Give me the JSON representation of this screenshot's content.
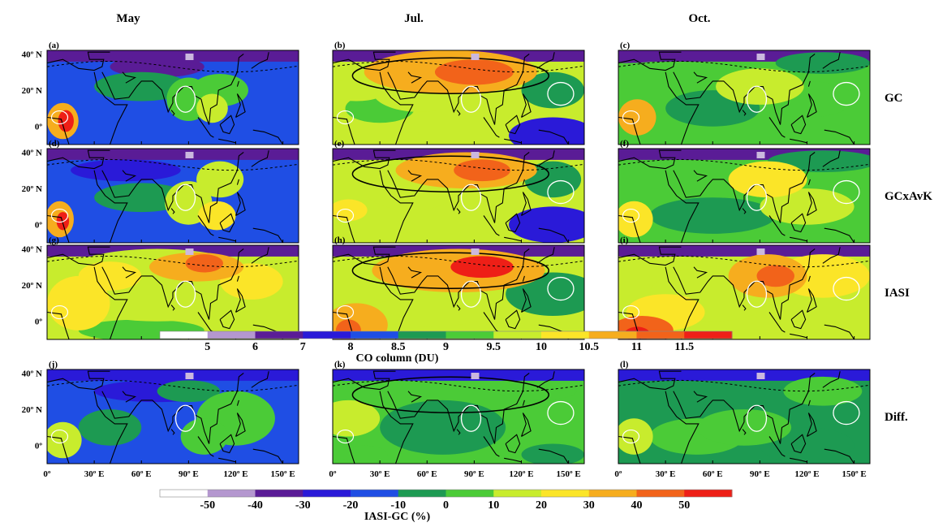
{
  "chart_data": {
    "type": "heatmap",
    "columns": [
      "May",
      "Jul.",
      "Oct."
    ],
    "rows": [
      "GC",
      "GCxAvK",
      "IASI",
      "Diff."
    ],
    "panel_labels": [
      [
        "(a)",
        "(b)",
        "(c)"
      ],
      [
        "(d)",
        "(e)",
        "(f)"
      ],
      [
        "(g)",
        "(h)",
        "(i)"
      ],
      [
        "(j)",
        "(k)",
        "(l)"
      ]
    ],
    "lat_ticks": [
      "40º N",
      "20º N",
      "0º"
    ],
    "lon_ticks": [
      "0º",
      "30º E",
      "60º E",
      "90º E",
      "120º E",
      "150º E"
    ],
    "lat_range": [
      -10,
      42
    ],
    "lon_range": [
      0,
      160
    ],
    "colorbar_co": {
      "title": "CO column (DU)",
      "ticks": [
        "5",
        "6",
        "7",
        "8",
        "8.5",
        "9",
        "9.5",
        "10",
        "10.5",
        "11",
        "11.5"
      ],
      "colors": [
        "#ffffff",
        "#b497cf",
        "#5a1c96",
        "#2a1ad8",
        "#1f4ee4",
        "#1d9a52",
        "#4bcb37",
        "#c8ec2d",
        "#fbe528",
        "#f6ad1e",
        "#f2631a",
        "#ee1f17"
      ]
    },
    "colorbar_diff": {
      "title": "IASI-GC (%)",
      "ticks": [
        "-50",
        "-40",
        "-30",
        "-20",
        "-10",
        "0",
        "10",
        "20",
        "30",
        "40",
        "50"
      ],
      "colors": [
        "#ffffff",
        "#b497cf",
        "#5a1c96",
        "#2a1ad8",
        "#1f4ee4",
        "#1d9a52",
        "#4bcb37",
        "#c8ec2d",
        "#fbe528",
        "#f6ad1e",
        "#f2631a",
        "#ee1f17"
      ]
    },
    "co_dominant_level": {
      "GC": {
        "May": 8,
        "Jul.": 9.5,
        "Oct.": 9
      },
      "GCxAvK": {
        "May": 8,
        "Jul.": 9.5,
        "Oct.": 9
      },
      "IASI": {
        "May": 9.5,
        "Jul.": 9.5,
        "Oct.": 9.5
      }
    },
    "diff_dominant_level": {
      "May": -20,
      "Jul.": 0,
      "Oct.": -10
    }
  }
}
